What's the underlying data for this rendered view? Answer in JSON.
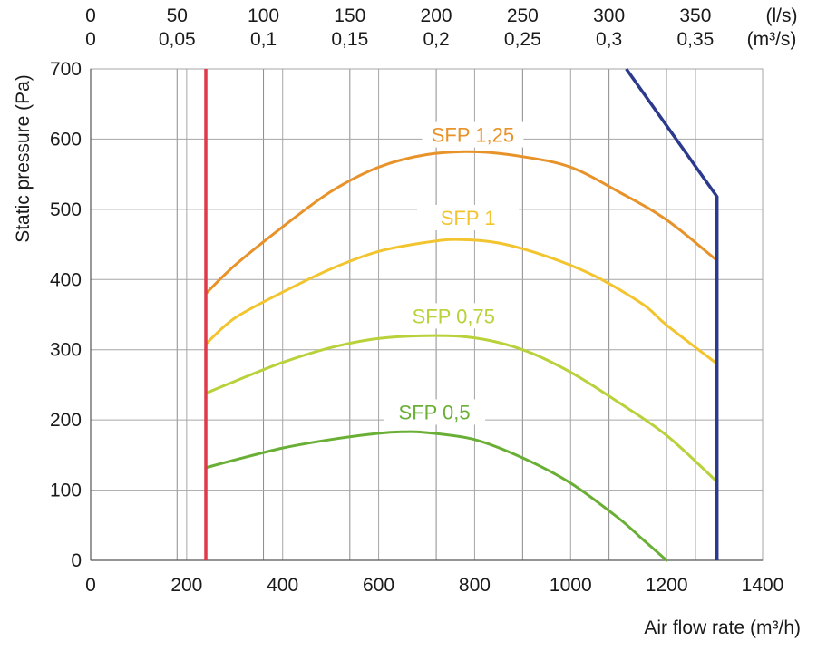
{
  "chart_data": {
    "type": "line",
    "xlabel": "Air flow rate (m³/h)",
    "ylabel": "Static pressure (Pa)",
    "xlim": [
      0,
      1400
    ],
    "ylim": [
      0,
      700
    ],
    "grid": true,
    "x_ticks": [
      0,
      200,
      400,
      600,
      800,
      1000,
      1200,
      1400
    ],
    "y_ticks": [
      0,
      100,
      200,
      300,
      400,
      500,
      600,
      700
    ],
    "top_axis": {
      "ls_label": "(l/s)",
      "m3s_label": "(m³/s)",
      "ls_ticks": [
        "0",
        "50",
        "100",
        "150",
        "200",
        "250",
        "300",
        "350"
      ],
      "m3s_ticks": [
        "0",
        "0,05",
        "0,1",
        "0,15",
        "0,2",
        "0,25",
        "0,3",
        "0,35"
      ],
      "ls_values": [
        0,
        50,
        100,
        150,
        200,
        250,
        300,
        350
      ]
    },
    "series": [
      {
        "name": "SFP 1,25",
        "color": "#e8922a",
        "points": [
          [
            240,
            380
          ],
          [
            300,
            420
          ],
          [
            400,
            475
          ],
          [
            500,
            525
          ],
          [
            600,
            560
          ],
          [
            700,
            578
          ],
          [
            800,
            582
          ],
          [
            900,
            575
          ],
          [
            1000,
            560
          ],
          [
            1100,
            525
          ],
          [
            1200,
            485
          ],
          [
            1305,
            427
          ]
        ]
      },
      {
        "name": "SFP 1",
        "color": "#f2c530",
        "points": [
          [
            240,
            308
          ],
          [
            300,
            345
          ],
          [
            400,
            382
          ],
          [
            500,
            415
          ],
          [
            600,
            440
          ],
          [
            700,
            453
          ],
          [
            765,
            457
          ],
          [
            850,
            452
          ],
          [
            950,
            433
          ],
          [
            1050,
            405
          ],
          [
            1150,
            365
          ],
          [
            1200,
            335
          ],
          [
            1305,
            280
          ]
        ]
      },
      {
        "name": "SFP 0,75",
        "color": "#b9d13a",
        "points": [
          [
            240,
            238
          ],
          [
            300,
            255
          ],
          [
            400,
            282
          ],
          [
            500,
            303
          ],
          [
            600,
            316
          ],
          [
            700,
            320
          ],
          [
            800,
            317
          ],
          [
            900,
            300
          ],
          [
            1000,
            268
          ],
          [
            1100,
            225
          ],
          [
            1200,
            178
          ],
          [
            1305,
            112
          ]
        ]
      },
      {
        "name": "SFP 0,5",
        "color": "#6aaf35",
        "points": [
          [
            240,
            132
          ],
          [
            300,
            143
          ],
          [
            400,
            160
          ],
          [
            500,
            172
          ],
          [
            600,
            181
          ],
          [
            650,
            183
          ],
          [
            700,
            182
          ],
          [
            800,
            172
          ],
          [
            900,
            146
          ],
          [
            1000,
            110
          ],
          [
            1100,
            60
          ],
          [
            1150,
            30
          ],
          [
            1200,
            0
          ]
        ]
      }
    ],
    "limit_lines": [
      {
        "color": "#e0394c",
        "points": [
          [
            240,
            0
          ],
          [
            240,
            700
          ]
        ]
      },
      {
        "color": "#2b3a8c",
        "points": [
          [
            1116,
            700
          ],
          [
            1305,
            518
          ],
          [
            1305,
            0
          ]
        ]
      }
    ]
  }
}
